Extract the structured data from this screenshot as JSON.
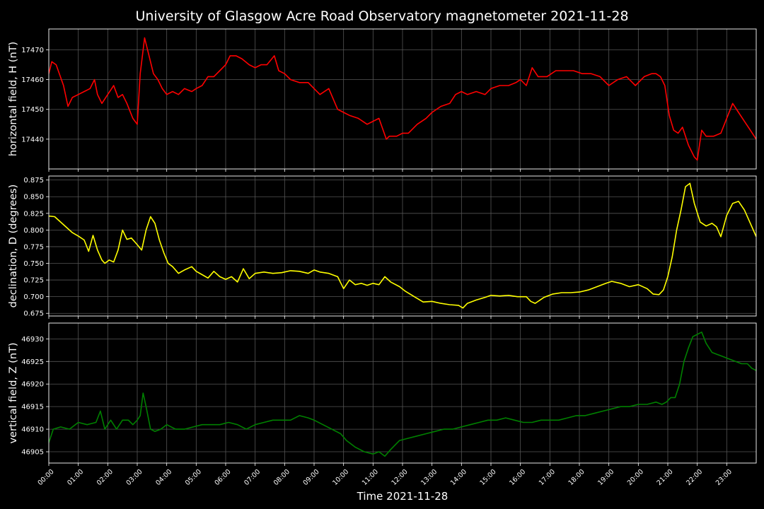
{
  "figure": {
    "title": "University of Glasgow Acre Road Observatory magnetometer 2021-11-28",
    "xlabel": "Time 2021-11-28",
    "background": "#000000",
    "text_color": "#ffffff",
    "grid_color": "#555555"
  },
  "chart_data": [
    {
      "type": "line",
      "ylabel": "horizontal field, H (nT)",
      "color": "#ff0000",
      "xlim": [
        0,
        24
      ],
      "ylim": [
        17430,
        17477
      ],
      "yticks": [
        17440,
        17450,
        17460,
        17470
      ],
      "ytick_labels": [
        "17440",
        "17450",
        "17460",
        "17470"
      ],
      "show_xticklabels": false,
      "grid": true,
      "series": [
        {
          "x": [
            0,
            0.1,
            0.25,
            0.5,
            0.65,
            0.8,
            1.0,
            1.2,
            1.4,
            1.55,
            1.65,
            1.8,
            2.0,
            2.2,
            2.35,
            2.5,
            2.65,
            2.85,
            3.0,
            3.1,
            3.25,
            3.4,
            3.55,
            3.7,
            3.85,
            4.0,
            4.2,
            4.4,
            4.6,
            4.85,
            5.0,
            5.2,
            5.4,
            5.6,
            5.8,
            6.0,
            6.15,
            6.35,
            6.55,
            6.8,
            7.0,
            7.2,
            7.4,
            7.65,
            7.8,
            8.0,
            8.2,
            8.5,
            8.8,
            9.0,
            9.2,
            9.5,
            9.8,
            10.0,
            10.2,
            10.5,
            10.8,
            11.0,
            11.2,
            11.45,
            11.55,
            11.8,
            12.0,
            12.2,
            12.5,
            12.8,
            13.0,
            13.3,
            13.6,
            13.8,
            14.0,
            14.2,
            14.5,
            14.8,
            15.0,
            15.3,
            15.6,
            15.85,
            16.0,
            16.2,
            16.4,
            16.6,
            16.9,
            17.2,
            17.5,
            17.8,
            18.1,
            18.4,
            18.7,
            19.0,
            19.3,
            19.6,
            19.9,
            20.2,
            20.45,
            20.6,
            20.75,
            20.9,
            21.05,
            21.2,
            21.35,
            21.5,
            21.7,
            21.9,
            22.0,
            22.15,
            22.3,
            22.55,
            22.8,
            23.0,
            23.2,
            23.4,
            23.6,
            23.8,
            24.0
          ],
          "y": [
            17462,
            17466,
            17465,
            17458,
            17451,
            17454,
            17455,
            17456,
            17457,
            17460,
            17455,
            17452,
            17455,
            17458,
            17454,
            17455,
            17452,
            17447,
            17445,
            17462,
            17474,
            17468,
            17462,
            17460,
            17457,
            17455,
            17456,
            17455,
            17457,
            17456,
            17457,
            17458,
            17461,
            17461,
            17463,
            17465,
            17468,
            17468,
            17467,
            17465,
            17464,
            17465,
            17465,
            17468,
            17463,
            17462,
            17460,
            17459,
            17459,
            17457,
            17455,
            17457,
            17450,
            17449,
            17448,
            17447,
            17445,
            17446,
            17447,
            17440,
            17441,
            17441,
            17442,
            17442,
            17445,
            17447,
            17449,
            17451,
            17452,
            17455,
            17456,
            17455,
            17456,
            17455,
            17457,
            17458,
            17458,
            17459,
            17460,
            17458,
            17464,
            17461,
            17461,
            17463,
            17463,
            17463,
            17462,
            17462,
            17461,
            17458,
            17460,
            17461,
            17458,
            17461,
            17462,
            17462,
            17461,
            17458,
            17448,
            17443,
            17442,
            17444,
            17438,
            17434,
            17433,
            17443,
            17441,
            17441,
            17442,
            17447,
            17452,
            17449,
            17446,
            17443,
            17440
          ]
        }
      ]
    },
    {
      "type": "line",
      "ylabel": "declination, D (degrees)",
      "color": "#ffff00",
      "xlim": [
        0,
        24
      ],
      "ylim": [
        0.671,
        0.881
      ],
      "yticks": [
        0.675,
        0.7,
        0.725,
        0.75,
        0.775,
        0.8,
        0.825,
        0.85,
        0.875
      ],
      "ytick_labels": [
        "0.675",
        "0.700",
        "0.725",
        "0.750",
        "0.775",
        "0.800",
        "0.825",
        "0.850",
        "0.875"
      ],
      "show_xticklabels": false,
      "grid": true,
      "series": [
        {
          "x": [
            0,
            0.2,
            0.4,
            0.6,
            0.8,
            1.0,
            1.2,
            1.35,
            1.5,
            1.65,
            1.8,
            1.9,
            2.05,
            2.2,
            2.35,
            2.5,
            2.65,
            2.8,
            3.0,
            3.15,
            3.3,
            3.45,
            3.6,
            3.75,
            3.9,
            4.05,
            4.2,
            4.4,
            4.6,
            4.85,
            5.0,
            5.2,
            5.4,
            5.6,
            5.8,
            6.0,
            6.2,
            6.4,
            6.6,
            6.8,
            7.0,
            7.3,
            7.6,
            7.9,
            8.2,
            8.5,
            8.8,
            9.0,
            9.2,
            9.5,
            9.8,
            10.0,
            10.2,
            10.4,
            10.6,
            10.8,
            11.0,
            11.2,
            11.4,
            11.6,
            11.9,
            12.1,
            12.4,
            12.7,
            13.0,
            13.3,
            13.6,
            13.9,
            14.05,
            14.2,
            14.5,
            14.8,
            15.0,
            15.3,
            15.6,
            15.9,
            16.2,
            16.35,
            16.5,
            16.8,
            17.1,
            17.4,
            17.7,
            18.0,
            18.3,
            18.6,
            18.9,
            19.1,
            19.4,
            19.7,
            20.0,
            20.3,
            20.5,
            20.7,
            20.85,
            21.0,
            21.15,
            21.3,
            21.45,
            21.6,
            21.75,
            21.9,
            22.1,
            22.3,
            22.5,
            22.65,
            22.8,
            23.0,
            23.2,
            23.4,
            23.6,
            23.8,
            24.0
          ],
          "y": [
            0.821,
            0.82,
            0.812,
            0.804,
            0.796,
            0.791,
            0.785,
            0.768,
            0.792,
            0.77,
            0.755,
            0.75,
            0.755,
            0.752,
            0.77,
            0.8,
            0.786,
            0.788,
            0.778,
            0.77,
            0.8,
            0.82,
            0.81,
            0.785,
            0.766,
            0.75,
            0.745,
            0.735,
            0.74,
            0.745,
            0.738,
            0.733,
            0.728,
            0.738,
            0.73,
            0.726,
            0.73,
            0.722,
            0.742,
            0.727,
            0.735,
            0.737,
            0.735,
            0.736,
            0.739,
            0.738,
            0.735,
            0.74,
            0.737,
            0.735,
            0.73,
            0.712,
            0.725,
            0.718,
            0.72,
            0.717,
            0.72,
            0.718,
            0.73,
            0.722,
            0.715,
            0.708,
            0.7,
            0.692,
            0.693,
            0.69,
            0.688,
            0.687,
            0.683,
            0.69,
            0.695,
            0.699,
            0.702,
            0.701,
            0.702,
            0.7,
            0.7,
            0.693,
            0.69,
            0.699,
            0.704,
            0.706,
            0.706,
            0.707,
            0.71,
            0.715,
            0.72,
            0.723,
            0.72,
            0.715,
            0.718,
            0.712,
            0.704,
            0.703,
            0.71,
            0.73,
            0.76,
            0.8,
            0.83,
            0.865,
            0.87,
            0.84,
            0.812,
            0.806,
            0.81,
            0.805,
            0.79,
            0.822,
            0.84,
            0.843,
            0.83,
            0.81,
            0.79
          ]
        }
      ]
    },
    {
      "type": "line",
      "ylabel": "vertical field, Z (nT)",
      "color": "#008000",
      "xlim": [
        0,
        24
      ],
      "ylim": [
        46902.5,
        46933.5
      ],
      "yticks": [
        46905,
        46910,
        46915,
        46920,
        46925,
        46930
      ],
      "ytick_labels": [
        "46905",
        "46910",
        "46915",
        "46920",
        "46925",
        "46930"
      ],
      "show_xticklabels": true,
      "xticks": [
        0,
        1,
        2,
        3,
        4,
        5,
        6,
        7,
        8,
        9,
        10,
        11,
        12,
        13,
        14,
        15,
        16,
        17,
        18,
        19,
        20,
        21,
        22,
        23
      ],
      "xtick_labels": [
        "00:00",
        "01:00",
        "02:00",
        "03:00",
        "04:00",
        "05:00",
        "06:00",
        "07:00",
        "08:00",
        "09:00",
        "10:00",
        "11:00",
        "12:00",
        "13:00",
        "14:00",
        "15:00",
        "16:00",
        "17:00",
        "18:00",
        "19:00",
        "20:00",
        "21:00",
        "22:00",
        "23:00"
      ],
      "grid": true,
      "series": [
        {
          "x": [
            0,
            0.15,
            0.4,
            0.7,
            1.0,
            1.3,
            1.6,
            1.75,
            1.9,
            2.1,
            2.3,
            2.5,
            2.7,
            2.85,
            3.0,
            3.1,
            3.2,
            3.3,
            3.45,
            3.6,
            3.8,
            4.0,
            4.3,
            4.6,
            4.9,
            5.2,
            5.5,
            5.8,
            6.1,
            6.4,
            6.7,
            7.0,
            7.3,
            7.6,
            7.9,
            8.2,
            8.5,
            8.8,
            9.0,
            9.3,
            9.6,
            9.9,
            10.1,
            10.4,
            10.7,
            11.0,
            11.2,
            11.4,
            11.6,
            11.9,
            12.2,
            12.5,
            12.8,
            13.1,
            13.4,
            13.7,
            14.0,
            14.3,
            14.6,
            14.9,
            15.2,
            15.5,
            15.8,
            16.1,
            16.4,
            16.7,
            17.0,
            17.3,
            17.6,
            17.9,
            18.2,
            18.5,
            18.8,
            19.1,
            19.4,
            19.7,
            20.0,
            20.3,
            20.6,
            20.8,
            20.95,
            21.1,
            21.25,
            21.4,
            21.55,
            21.7,
            21.85,
            22.0,
            22.15,
            22.3,
            22.5,
            22.7,
            22.9,
            23.1,
            23.3,
            23.5,
            23.7,
            23.85,
            24.0
          ],
          "y": [
            46907,
            46910,
            46910.5,
            46910,
            46911.5,
            46911,
            46911.5,
            46914,
            46910,
            46912,
            46910,
            46912,
            46912,
            46911,
            46912,
            46913,
            46918,
            46915,
            46910,
            46909.5,
            46910,
            46911,
            46910,
            46910,
            46910.5,
            46911,
            46911,
            46911,
            46911.5,
            46911,
            46910,
            46911,
            46911.5,
            46912,
            46912,
            46912,
            46913,
            46912.5,
            46912,
            46911,
            46910,
            46909,
            46907.5,
            46906,
            46905,
            46904.5,
            46905,
            46904,
            46905.5,
            46907.5,
            46908,
            46908.5,
            46909,
            46909.5,
            46910,
            46910,
            46910.5,
            46911,
            46911.5,
            46912,
            46912,
            46912.5,
            46912,
            46911.5,
            46911.5,
            46912,
            46912,
            46912,
            46912.5,
            46913,
            46913,
            46913.5,
            46914,
            46914.5,
            46915,
            46915,
            46915.5,
            46915.5,
            46916,
            46915.5,
            46916,
            46917,
            46917,
            46920,
            46925,
            46928,
            46930.5,
            46931,
            46931.5,
            46929,
            46927,
            46926.5,
            46926,
            46925.5,
            46925,
            46924.5,
            46924.5,
            46923.5,
            46923
          ]
        }
      ]
    }
  ]
}
